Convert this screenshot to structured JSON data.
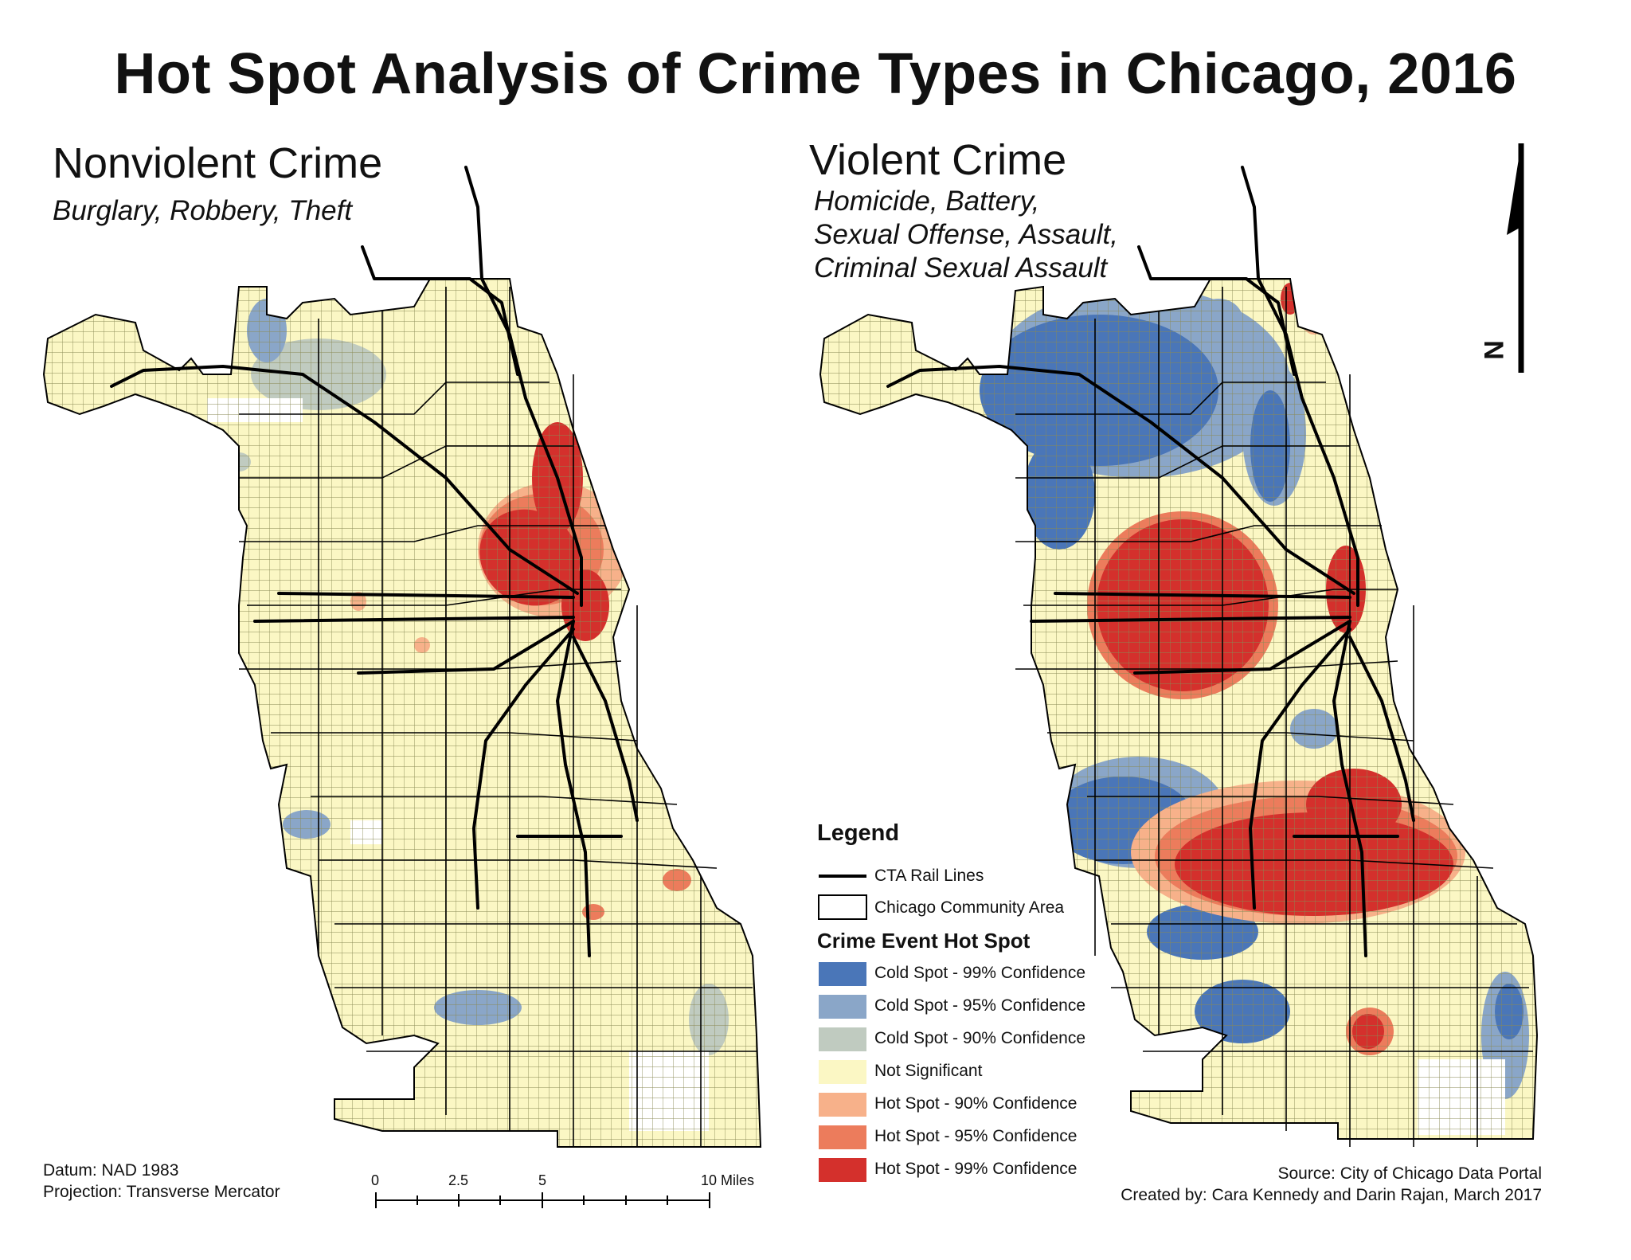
{
  "title": "Hot Spot Analysis of Crime Types in Chicago, 2016",
  "left_panel": {
    "title": "Nonviolent Crime",
    "subtitle": "Burglary, Robbery, Theft"
  },
  "right_panel": {
    "title": "Violent Crime",
    "subtitle_lines": [
      "Homicide, Battery,",
      "Sexual Offense, Assault,",
      "Criminal Sexual Assault"
    ]
  },
  "north_arrow": {
    "label": "N"
  },
  "legend": {
    "title": "Legend",
    "rail_label": "CTA Rail Lines",
    "community_label": "Chicago Community Area",
    "hotspot_title": "Crime Event Hot Spot",
    "classes": [
      {
        "label": "Cold Spot - 99% Confidence",
        "color": "#4a76b8"
      },
      {
        "label": "Cold Spot - 95% Confidence",
        "color": "#8aa6c8"
      },
      {
        "label": "Cold Spot - 90% Confidence",
        "color": "#c0cbc0"
      },
      {
        "label": "Not Significant",
        "color": "#fbf7c4"
      },
      {
        "label": "Hot Spot - 90% Confidence",
        "color": "#f7b18a"
      },
      {
        "label": "Hot Spot - 95% Confidence",
        "color": "#ec7c5c"
      },
      {
        "label": "Hot Spot - 99% Confidence",
        "color": "#d4302c"
      }
    ]
  },
  "datum": {
    "line1": "Datum: NAD 1983",
    "line2": "Projection: Transverse Mercator"
  },
  "scale_bar": {
    "ticks": [
      "0",
      "2.5",
      "5",
      "10 Miles"
    ]
  },
  "credits": {
    "line1": "Source: City of Chicago Data Portal",
    "line2": "Created by: Cara Kennedy and Darin Rajan, March 2017"
  }
}
